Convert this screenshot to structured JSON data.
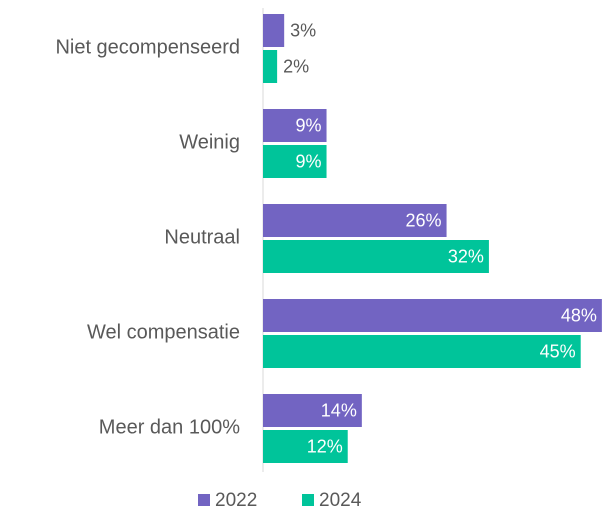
{
  "chart_data": {
    "type": "bar",
    "orientation": "horizontal",
    "categories": [
      "Niet gecompenseerd",
      "Weinig",
      "Neutraal",
      "Wel compensatie",
      "Meer dan 100%"
    ],
    "series": [
      {
        "name": "2022",
        "color": "#7264c2",
        "values": [
          3,
          9,
          26,
          48,
          14
        ],
        "value_labels": [
          "3%",
          "9%",
          "26%",
          "48%",
          "14%"
        ]
      },
      {
        "name": "2024",
        "color": "#00c49a",
        "values": [
          2,
          9,
          32,
          45,
          12
        ],
        "value_labels": [
          "2%",
          "9%",
          "32%",
          "45%",
          "12%"
        ]
      }
    ],
    "legend": "bottom"
  }
}
